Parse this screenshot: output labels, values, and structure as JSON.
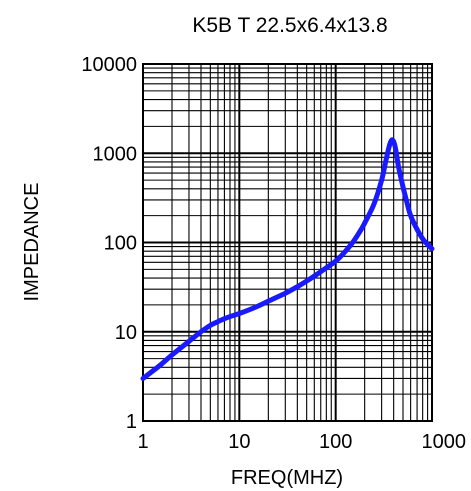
{
  "chart_data": {
    "type": "line",
    "title": "K5B T 22.5x6.4x13.8",
    "xlabel": "FREQ(MHZ)",
    "ylabel": "IMPEDANCE",
    "xscale": "log",
    "yscale": "log",
    "xlim": [
      1,
      1000
    ],
    "ylim": [
      1,
      10000
    ],
    "xticks": [
      1,
      10,
      100,
      1000
    ],
    "xtick_labels": [
      "1",
      "10",
      "100",
      "1000"
    ],
    "yticks": [
      1,
      10,
      100,
      1000,
      10000
    ],
    "ytick_labels": [
      "1",
      "10",
      "100",
      "1000",
      "10000"
    ],
    "grid": true,
    "legend": "none",
    "colors": {
      "line": "#1a1aff",
      "grid": "#000000"
    },
    "series": [
      {
        "x": [
          1,
          1.5,
          2,
          3,
          4,
          5,
          6,
          7,
          8,
          10,
          15,
          20,
          30,
          40,
          50,
          60,
          80,
          100,
          120,
          150,
          180,
          200,
          250,
          300,
          330,
          360,
          380,
          400,
          420,
          450,
          500,
          550,
          600,
          700,
          800,
          900,
          1000
        ],
        "y": [
          3,
          4.2,
          5.5,
          7.8,
          10,
          11.8,
          13,
          14,
          14.8,
          16,
          19,
          22,
          27,
          32,
          37,
          42,
          52,
          62,
          75,
          100,
          135,
          165,
          270,
          500,
          800,
          1200,
          1400,
          1350,
          1100,
          700,
          420,
          280,
          200,
          140,
          110,
          95,
          85
        ]
      }
    ]
  }
}
